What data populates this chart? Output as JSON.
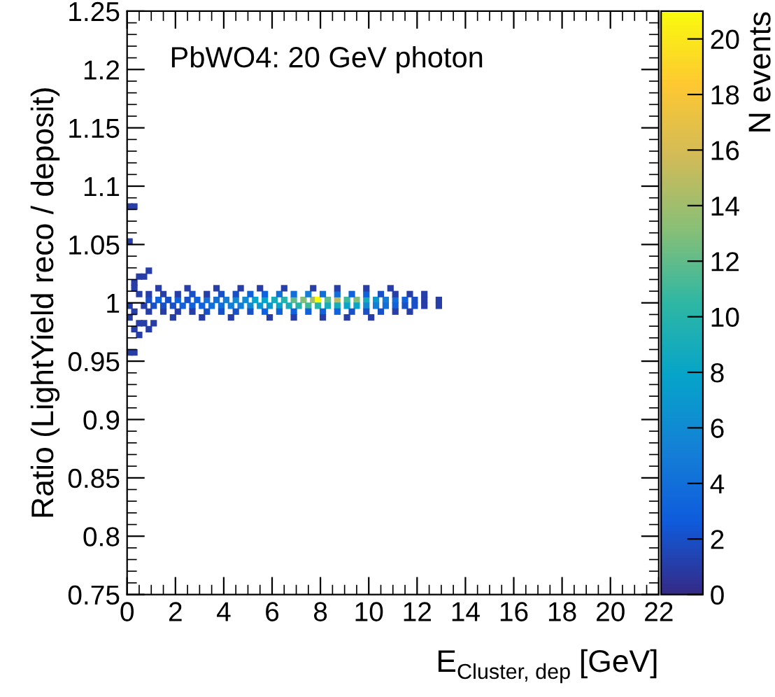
{
  "chart_data": {
    "type": "scatter",
    "title": "PbWO4: 20 GeV photon",
    "xlabel": "E$_{Cluster, dep}$ [GeV]",
    "ylabel": "Ratio (LightYield reco / deposit)",
    "clabel": "N events",
    "marker": "square",
    "grid": false,
    "xlim": [
      0,
      22
    ],
    "xticks": [
      0,
      2,
      4,
      6,
      8,
      10,
      12,
      14,
      16,
      18,
      20,
      22
    ],
    "ylim": [
      0.75,
      1.25
    ],
    "yticks": [
      0.75,
      0.8,
      0.85,
      0.9,
      0.95,
      1,
      1.05,
      1.1,
      1.15,
      1.2,
      1.25
    ],
    "clim": [
      0,
      21
    ],
    "cticks": [
      0,
      2,
      4,
      6,
      8,
      10,
      12,
      14,
      16,
      18,
      20
    ],
    "x": [
      0.1,
      0.3,
      0.1,
      0.5,
      0.3,
      0.7,
      0.9,
      0.3,
      0.5,
      0.1,
      0.3,
      0.1,
      0.5,
      0.3,
      0.7,
      0.5,
      0.9,
      0.1,
      0.3,
      1.1,
      0.9,
      1.3,
      1.7,
      2.1,
      2.5,
      2.9,
      3.3,
      3.7,
      4.1,
      4.5,
      4.9,
      5.3,
      5.7,
      6.1,
      6.5,
      6.9,
      7.3,
      7.7,
      7.9,
      8.3,
      8.7,
      9.1,
      9.5,
      9.9,
      10.3,
      10.7,
      11.1,
      11.5,
      11.9,
      12.3,
      12.9,
      0.7,
      1.1,
      1.5,
      1.9,
      2.3,
      2.7,
      3.1,
      3.5,
      3.9,
      4.3,
      4.7,
      5.1,
      5.5,
      5.9,
      6.3,
      6.7,
      7.1,
      7.5,
      7.9,
      8.3,
      8.7,
      9.1,
      9.5,
      9.9,
      10.3,
      10.7,
      11.1,
      11.5,
      11.9,
      12.3,
      12.9,
      0.9,
      1.5,
      2.1,
      2.7,
      3.3,
      3.9,
      4.5,
      5.1,
      5.7,
      6.3,
      6.9,
      7.5,
      8.1,
      8.7,
      9.3,
      9.9,
      10.5,
      11.1,
      11.7,
      12.3,
      0.9,
      1.5,
      2.1,
      2.7,
      3.3,
      3.9,
      4.5,
      5.1,
      5.7,
      6.3,
      6.9,
      7.5,
      8.1,
      8.7,
      9.3,
      9.9,
      10.5,
      11.1,
      11.7,
      1.3,
      2.5,
      3.7,
      4.7,
      5.5,
      6.5,
      7.7,
      8.7,
      9.9,
      10.9,
      1.9,
      3.1,
      4.3,
      5.9,
      6.9,
      8.1,
      9.1,
      10.1
    ],
    "values": [
      1.0825,
      1.0825,
      1.0525,
      1.0225,
      1.0175,
      1.0225,
      1.0275,
      1.0125,
      1.0075,
      0.9975,
      0.9925,
      0.9875,
      0.9825,
      0.9775,
      0.9825,
      0.9725,
      0.9775,
      0.9575,
      0.9575,
      0.9825,
      1.0025,
      1.0025,
      1.0025,
      1.0025,
      1.0025,
      1.0025,
      1.0025,
      1.0025,
      1.0025,
      1.0025,
      1.0025,
      1.0025,
      1.0025,
      1.0025,
      1.0025,
      1.0025,
      1.0025,
      1.0025,
      1.0025,
      1.0025,
      1.0025,
      1.0025,
      1.0025,
      1.0025,
      1.0025,
      1.0025,
      1.0025,
      1.0025,
      1.0025,
      1.0025,
      1.0025,
      0.9975,
      0.9975,
      0.9975,
      0.9975,
      0.9975,
      0.9975,
      0.9975,
      0.9975,
      0.9975,
      0.9975,
      0.9975,
      0.9975,
      0.9975,
      0.9975,
      0.9975,
      0.9975,
      0.9975,
      0.9975,
      0.9975,
      0.9975,
      0.9975,
      0.9975,
      0.9975,
      0.9975,
      0.9975,
      0.9975,
      0.9975,
      0.9975,
      0.9975,
      0.9975,
      0.9975,
      1.0075,
      1.0075,
      1.0075,
      1.0075,
      1.0075,
      1.0075,
      1.0075,
      1.0075,
      1.0075,
      1.0075,
      1.0075,
      1.0075,
      1.0075,
      1.0075,
      1.0075,
      1.0075,
      1.0075,
      1.0075,
      1.0075,
      1.0075,
      0.9925,
      0.9925,
      0.9925,
      0.9925,
      0.9925,
      0.9925,
      0.9925,
      0.9925,
      0.9925,
      0.9925,
      0.9925,
      0.9925,
      0.9925,
      0.9925,
      0.9925,
      0.9925,
      0.9925,
      0.9925,
      0.9925,
      1.0125,
      1.0125,
      1.0125,
      1.0125,
      1.0125,
      1.0125,
      1.0125,
      1.0125,
      1.0125,
      1.0125,
      0.9875,
      0.9875,
      0.9875,
      0.9875,
      0.9875,
      0.9875,
      0.9875,
      0.9875
    ],
    "cvalues": [
      1,
      1,
      1,
      1,
      1,
      1,
      1,
      1,
      1,
      1,
      1,
      1,
      1,
      1,
      1,
      1,
      1,
      1,
      1,
      1,
      2,
      3,
      2,
      3,
      2,
      3,
      4,
      4,
      5,
      6,
      6,
      8,
      8,
      9,
      10,
      12,
      13,
      14,
      21,
      12,
      15,
      11,
      13,
      9,
      7,
      5,
      4,
      3,
      2,
      1,
      1,
      1,
      2,
      2,
      2,
      3,
      3,
      3,
      4,
      4,
      5,
      5,
      6,
      7,
      7,
      8,
      9,
      10,
      11,
      10,
      9,
      9,
      8,
      8,
      6,
      5,
      4,
      3,
      2,
      2,
      1,
      1,
      1,
      1,
      1,
      2,
      1,
      2,
      2,
      3,
      3,
      4,
      4,
      5,
      4,
      4,
      3,
      3,
      2,
      1,
      1,
      1,
      1,
      1,
      1,
      1,
      2,
      2,
      2,
      2,
      3,
      3,
      3,
      3,
      3,
      3,
      2,
      2,
      2,
      1,
      1,
      1,
      1,
      1,
      1,
      1,
      1,
      1,
      1,
      1,
      1,
      1,
      1,
      1,
      1,
      1,
      1,
      1,
      1
    ]
  }
}
